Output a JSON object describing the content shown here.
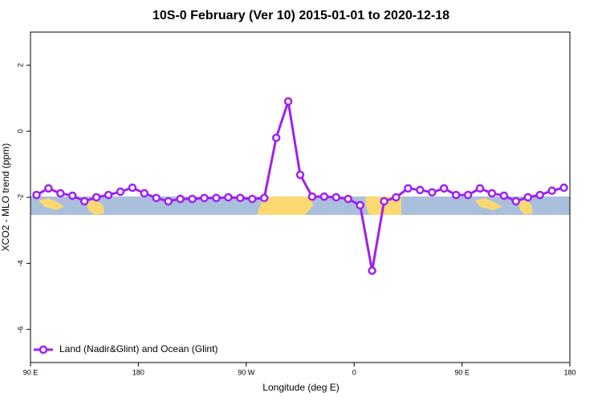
{
  "chart_data": {
    "type": "line",
    "title": "10S-0 February (Ver 10)   2015-01-01 to 2020-12-18",
    "x_label": "Longitude (deg E)",
    "y_label": "XCO2 - MLO trend (ppm)",
    "x": [
      95,
      105,
      115,
      125,
      135,
      145,
      155,
      165,
      175,
      185,
      195,
      205,
      215,
      225,
      235,
      245,
      255,
      265,
      275,
      285,
      295,
      305,
      315,
      325,
      335,
      345,
      355,
      365,
      375,
      385,
      395,
      405,
      415,
      425,
      435,
      445,
      455,
      465,
      475,
      485,
      495,
      505,
      515,
      525,
      535
    ],
    "series": [
      {
        "name": "Land (Nadir&Glint) and Ocean (Glint)",
        "color": "#a020f0",
        "values": [
          -1.93,
          -1.73,
          -1.88,
          -1.95,
          -2.12,
          -2.0,
          -1.93,
          -1.83,
          -1.71,
          -1.88,
          -2.02,
          -2.12,
          -2.05,
          -2.05,
          -2.02,
          -2.02,
          -2.0,
          -2.02,
          -2.05,
          -2.02,
          -0.2,
          0.9,
          -1.32,
          -1.98,
          -1.98,
          -2.0,
          -2.05,
          -2.24,
          -4.22,
          -2.12,
          -2.0,
          -1.73,
          -1.78,
          -1.85,
          -1.73,
          -1.93,
          -1.93,
          -1.73,
          -1.88,
          -1.95,
          -2.12,
          -2.0,
          -1.93,
          -1.8,
          -1.71
        ]
      }
    ],
    "xlim": [
      90,
      540
    ],
    "xticks": [
      {
        "value": 90,
        "label": "90 E"
      },
      180,
      {
        "value": 270,
        "label": "90 W"
      },
      {
        "value": 360,
        "label": "0"
      },
      {
        "value": 450,
        "label": "90 E"
      },
      {
        "value": 540,
        "label": "180"
      }
    ],
    "ylim": [
      -7,
      3
    ],
    "yticks": [
      -6,
      -4,
      -2,
      0,
      2
    ],
    "legend": "bottom-left"
  }
}
